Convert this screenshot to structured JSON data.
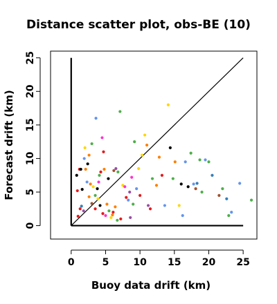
{
  "chart_data": {
    "type": "scatter",
    "title": "Distance scatter plot, obs-BE (10)",
    "xlabel": "Buoy data drift (km)",
    "ylabel": "Forecast drift (km)",
    "xlim": [
      -3,
      27
    ],
    "ylim": [
      -2,
      26
    ],
    "x_ticks": [
      0,
      5,
      10,
      15,
      20,
      25
    ],
    "y_ticks": [
      0,
      5,
      10,
      15,
      20,
      25
    ],
    "grid": false,
    "legend": "none",
    "reference_lines": [
      {
        "from": [
          0,
          0
        ],
        "to": [
          25,
          25
        ],
        "label": "1:1 line"
      },
      {
        "from": [
          0,
          0
        ],
        "to": [
          0,
          25
        ]
      },
      {
        "from": [
          0,
          0
        ],
        "to": [
          25,
          0
        ]
      }
    ],
    "colors": [
      "#000000",
      "#e41a1c",
      "#ff7f00",
      "#4daf4a",
      "#377eb8",
      "#984ea3",
      "#ff33cc",
      "#ffd700",
      "#6495ed",
      "#a0522d",
      "#888888"
    ],
    "points": [
      [
        0.8,
        7.5,
        "#000000"
      ],
      [
        0.9,
        5.2,
        "#e41a1c"
      ],
      [
        1.2,
        8.4,
        "#e41a1c"
      ],
      [
        1.4,
        8.4,
        "#000000"
      ],
      [
        1.6,
        5.4,
        "#000000"
      ],
      [
        1.9,
        10.0,
        "#6495ed"
      ],
      [
        2.0,
        11.6,
        "#ffd700"
      ],
      [
        2.1,
        8.4,
        "#ff7f00"
      ],
      [
        1.3,
        2.5,
        "#e41a1c"
      ],
      [
        1.5,
        2.9,
        "#377eb8"
      ],
      [
        1.8,
        2.2,
        "#984ea3"
      ],
      [
        2.4,
        9.2,
        "#000000"
      ],
      [
        2.6,
        10.5,
        "#ff7f00"
      ],
      [
        3.0,
        12.2,
        "#4daf4a"
      ],
      [
        3.6,
        16.0,
        "#6495ed"
      ],
      [
        2.8,
        6.2,
        "#ff7f00"
      ],
      [
        3.2,
        5.8,
        "#ffd700"
      ],
      [
        3.5,
        4.5,
        "#4daf4a"
      ],
      [
        3.8,
        5.5,
        "#000000"
      ],
      [
        4.0,
        6.5,
        "#ff33cc"
      ],
      [
        4.3,
        8.0,
        "#e41a1c"
      ],
      [
        4.5,
        13.1,
        "#ff33cc"
      ],
      [
        4.7,
        11.0,
        "#e41a1c"
      ],
      [
        4.1,
        7.5,
        "#4daf4a"
      ],
      [
        4.8,
        8.4,
        "#ff7f00"
      ],
      [
        3.0,
        3.3,
        "#a0522d"
      ],
      [
        3.5,
        2.5,
        "#e41a1c"
      ],
      [
        4.2,
        3.0,
        "#000000"
      ],
      [
        4.6,
        1.8,
        "#e41a1c"
      ],
      [
        5.0,
        1.5,
        "#ff33cc"
      ],
      [
        5.2,
        3.2,
        "#ff7f00"
      ],
      [
        5.5,
        2.2,
        "#4daf4a"
      ],
      [
        5.8,
        1.2,
        "#ffd700"
      ],
      [
        6.1,
        2.0,
        "#e41a1c"
      ],
      [
        6.4,
        2.8,
        "#ff7f00"
      ],
      [
        6.2,
        8.2,
        "#a0522d"
      ],
      [
        6.5,
        8.5,
        "#984ea3"
      ],
      [
        6.8,
        8.0,
        "#4daf4a"
      ],
      [
        7.1,
        17.0,
        "#4daf4a"
      ],
      [
        7.5,
        6.0,
        "#ffd700"
      ],
      [
        7.8,
        5.8,
        "#ff33cc"
      ],
      [
        8.0,
        4.2,
        "#e41a1c"
      ],
      [
        8.3,
        3.8,
        "#6495ed"
      ],
      [
        8.5,
        5.0,
        "#984ea3"
      ],
      [
        8.8,
        7.2,
        "#ff33cc"
      ],
      [
        9.0,
        3.2,
        "#4daf4a"
      ],
      [
        9.2,
        12.5,
        "#4daf4a"
      ],
      [
        9.5,
        5.5,
        "#6495ed"
      ],
      [
        9.8,
        8.5,
        "#ffd700"
      ],
      [
        10.0,
        4.5,
        "#e41a1c"
      ],
      [
        10.3,
        10.5,
        "#ffd700"
      ],
      [
        10.7,
        13.5,
        "#ffd700"
      ],
      [
        11.0,
        12.0,
        "#ff7f00"
      ],
      [
        11.2,
        3.0,
        "#984ea3"
      ],
      [
        11.5,
        2.5,
        "#e41a1c"
      ],
      [
        11.8,
        7.0,
        "#4daf4a"
      ],
      [
        12.4,
        6.0,
        "#ff7f00"
      ],
      [
        12.8,
        10.2,
        "#ff7f00"
      ],
      [
        13.2,
        7.5,
        "#e41a1c"
      ],
      [
        13.6,
        3.0,
        "#6495ed"
      ],
      [
        14.1,
        18.0,
        "#ffd700"
      ],
      [
        14.4,
        11.6,
        "#000000"
      ],
      [
        14.8,
        7.0,
        "#4daf4a"
      ],
      [
        15.1,
        9.5,
        "#ff7f00"
      ],
      [
        15.7,
        3.0,
        "#ffd700"
      ],
      [
        16.0,
        6.2,
        "#000000"
      ],
      [
        16.2,
        1.5,
        "#6495ed"
      ],
      [
        16.6,
        9.5,
        "#6495ed"
      ],
      [
        17.0,
        5.8,
        "#000000"
      ],
      [
        17.4,
        10.8,
        "#4daf4a"
      ],
      [
        17.8,
        6.2,
        "#6495ed"
      ],
      [
        18.1,
        5.5,
        "#a0522d"
      ],
      [
        18.3,
        6.3,
        "#377eb8"
      ],
      [
        18.7,
        9.8,
        "#4daf4a"
      ],
      [
        19.0,
        5.0,
        "#4daf4a"
      ],
      [
        19.5,
        9.8,
        "#6495ed"
      ],
      [
        20.0,
        9.5,
        "#4daf4a"
      ],
      [
        20.5,
        7.5,
        "#377eb8"
      ],
      [
        21.5,
        4.5,
        "#a0522d"
      ],
      [
        22.0,
        5.5,
        "#4daf4a"
      ],
      [
        22.6,
        4.0,
        "#377eb8"
      ],
      [
        22.9,
        1.5,
        "#4daf4a"
      ],
      [
        23.3,
        2.0,
        "#6495ed"
      ],
      [
        24.5,
        6.3,
        "#6495ed"
      ],
      [
        26.2,
        3.8,
        "#4daf4a"
      ],
      [
        6.7,
        0.8,
        "#4daf4a"
      ],
      [
        6.0,
        1.6,
        "#ff7f00"
      ],
      [
        7.2,
        1.0,
        "#e41a1c"
      ],
      [
        8.6,
        1.2,
        "#984ea3"
      ],
      [
        3.9,
        4.0,
        "#ffd700"
      ],
      [
        2.3,
        6.5,
        "#6495ed"
      ],
      [
        5.4,
        7.0,
        "#000000"
      ],
      [
        1.0,
        1.4,
        "#e41a1c"
      ],
      [
        2.6,
        4.3,
        "#ff7f00"
      ]
    ]
  }
}
